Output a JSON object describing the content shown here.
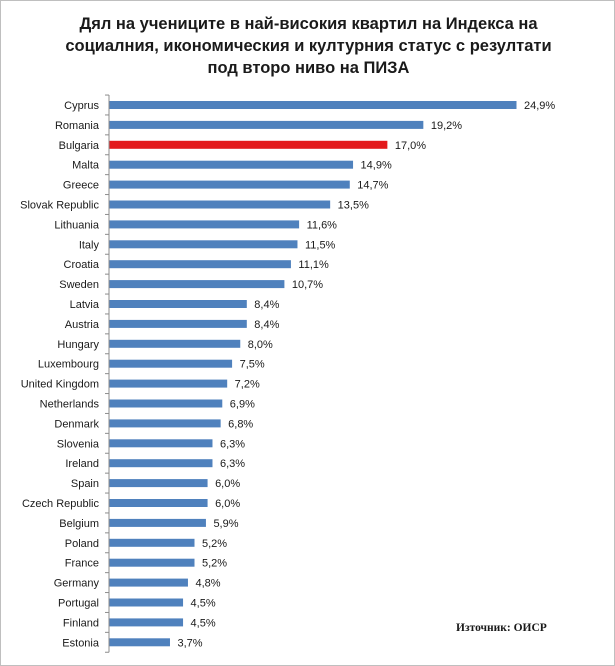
{
  "title_lines": [
    "Дял на учениците в най-високия квартил на Индекса на",
    "социалния, икономическия и културния статус с  резултати",
    "под второ ниво на ПИЗА"
  ],
  "source": "Източник: ОИСР",
  "colors": {
    "bar": "#4f81bd",
    "highlight": "#e31a1c",
    "axis": "#8c8c8c"
  },
  "chart_data": {
    "type": "bar",
    "orientation": "horizontal",
    "title": "Дял на учениците в най-високия квартил на Индекса на социалния, икономическия и културния статус с  резултати под второ ниво на ПИЗА",
    "xlabel": "",
    "ylabel": "",
    "xlim": [
      0,
      25
    ],
    "grid": false,
    "highlight": "Bulgaria",
    "categories": [
      "Cyprus",
      "Romania",
      "Bulgaria",
      "Malta",
      "Greece",
      "Slovak Republic",
      "Lithuania",
      "Italy",
      "Croatia",
      "Sweden",
      "Latvia",
      "Austria",
      "Hungary",
      "Luxembourg",
      "United Kingdom",
      "Netherlands",
      "Denmark",
      "Slovenia",
      "Ireland",
      "Spain",
      "Czech Republic",
      "Belgium",
      "Poland",
      "France",
      "Germany",
      "Portugal",
      "Finland",
      "Estonia"
    ],
    "values": [
      24.9,
      19.2,
      17.0,
      14.9,
      14.7,
      13.5,
      11.6,
      11.5,
      11.1,
      10.7,
      8.4,
      8.4,
      8.0,
      7.5,
      7.2,
      6.9,
      6.8,
      6.3,
      6.3,
      6.0,
      6.0,
      5.9,
      5.2,
      5.2,
      4.8,
      4.5,
      4.5,
      3.7
    ],
    "value_labels": [
      "24,9%",
      "19,2%",
      "17,0%",
      "14,9%",
      "14,7%",
      "13,5%",
      "11,6%",
      "11,5%",
      "11,1%",
      "10,7%",
      "8,4%",
      "8,4%",
      "8,0%",
      "7,5%",
      "7,2%",
      "6,9%",
      "6,8%",
      "6,3%",
      "6,3%",
      "6,0%",
      "6,0%",
      "5,9%",
      "5,2%",
      "5,2%",
      "4,8%",
      "4,5%",
      "4,5%",
      "3,7%"
    ]
  }
}
